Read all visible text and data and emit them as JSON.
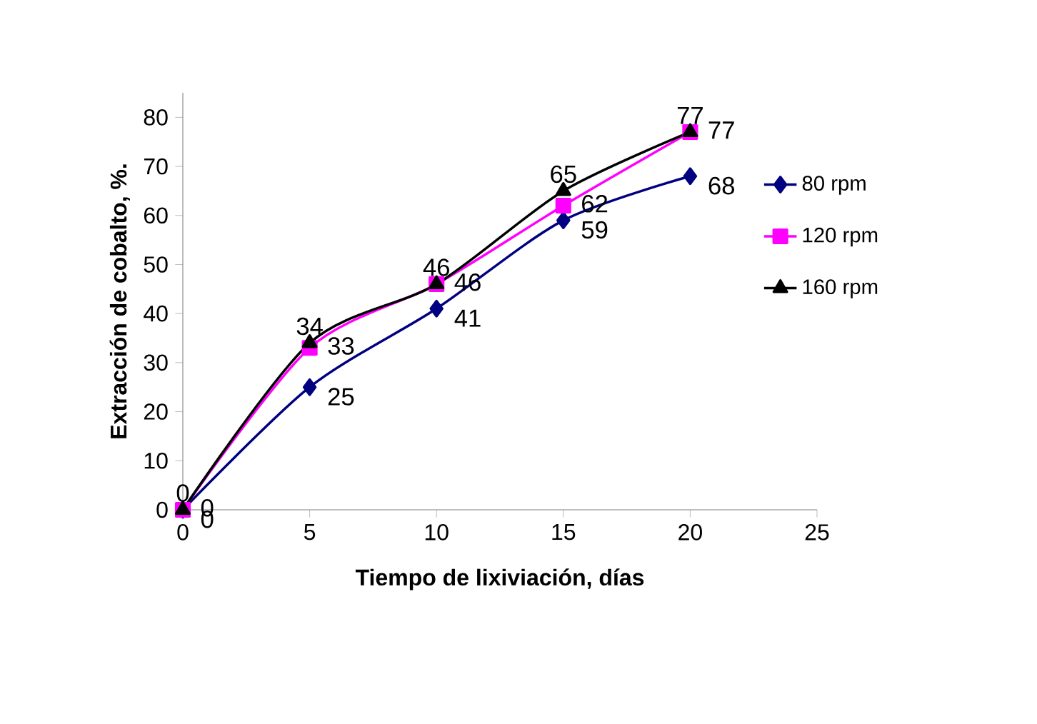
{
  "chart_data": {
    "type": "line",
    "xlabel": "Tiempo de lixiviación, días",
    "ylabel": "Extracción de cobalto, %.",
    "x": [
      0,
      5,
      10,
      15,
      20
    ],
    "series": [
      {
        "name": "80 rpm",
        "color": "#000080",
        "marker": "diamond",
        "values": [
          0,
          25,
          41,
          59,
          68
        ]
      },
      {
        "name": "120 rpm",
        "color": "#ff00ff",
        "marker": "square",
        "values": [
          0,
          33,
          46,
          62,
          77
        ]
      },
      {
        "name": "160 rpm",
        "color": "#000000",
        "marker": "triangle",
        "values": [
          0,
          34,
          46,
          65,
          77
        ]
      }
    ],
    "xlim": [
      0,
      25
    ],
    "xticks": [
      0,
      5,
      10,
      15,
      20,
      25
    ],
    "ylim": [
      0,
      85
    ],
    "yticks": [
      0,
      10,
      20,
      30,
      40,
      50,
      60,
      70,
      80
    ],
    "data_labels": true,
    "legend": "right",
    "grid": false
  }
}
